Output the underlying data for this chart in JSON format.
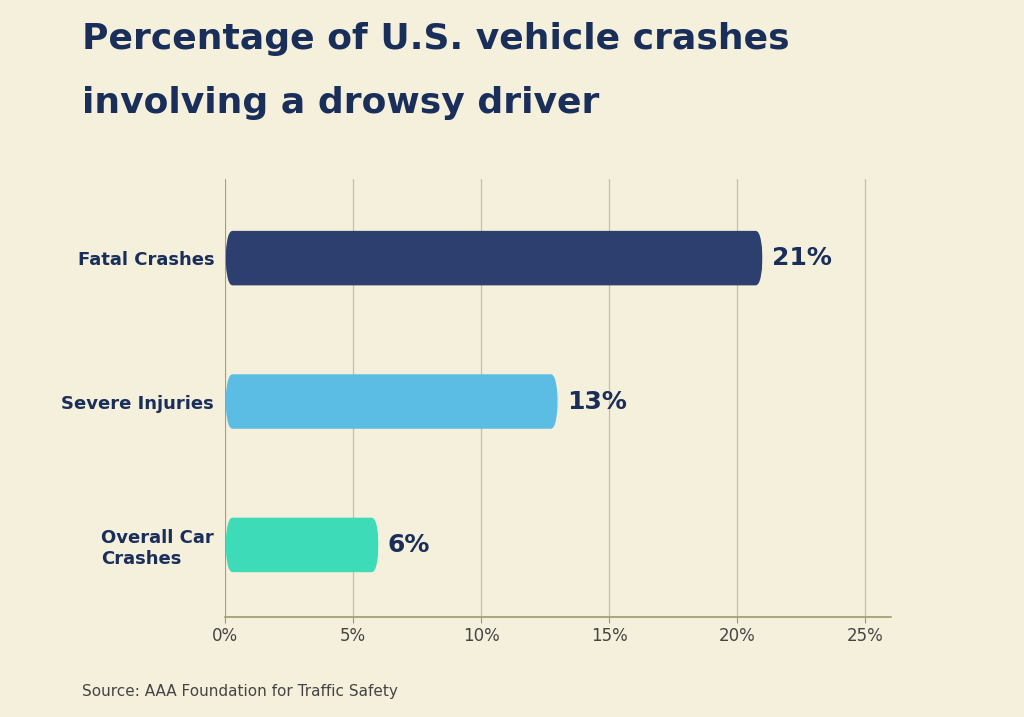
{
  "title_line1": "Percentage of U.S. vehicle crashes",
  "title_line2": "involving a drowsy driver",
  "categories": [
    "Fatal Crashes",
    "Severe Injuries",
    "Overall Car\nCrashes"
  ],
  "values": [
    21,
    13,
    6
  ],
  "labels": [
    "21%",
    "13%",
    "6%"
  ],
  "bar_colors": [
    "#2d3f6e",
    "#5bbce4",
    "#3ddbb8"
  ],
  "background_color": "#f5f0dc",
  "bar_label_color": "#1a2e5a",
  "title_color": "#1a2e5a",
  "ylabel_color": "#1a2e5a",
  "source_text": "Source: AAA Foundation for Traffic Safety",
  "xlim": [
    0,
    26
  ],
  "xticks": [
    0,
    5,
    10,
    15,
    20,
    25
  ],
  "xtick_labels": [
    "0%",
    "5%",
    "10%",
    "15%",
    "20%",
    "25%"
  ],
  "grid_color": "#c8c0a0",
  "axis_color": "#a09870",
  "bar_height": 0.38,
  "bar_label_fontsize": 18,
  "title_fontsize": 26,
  "ytick_fontsize": 13,
  "xtick_fontsize": 12,
  "source_fontsize": 11,
  "rounding_size": 0.28
}
